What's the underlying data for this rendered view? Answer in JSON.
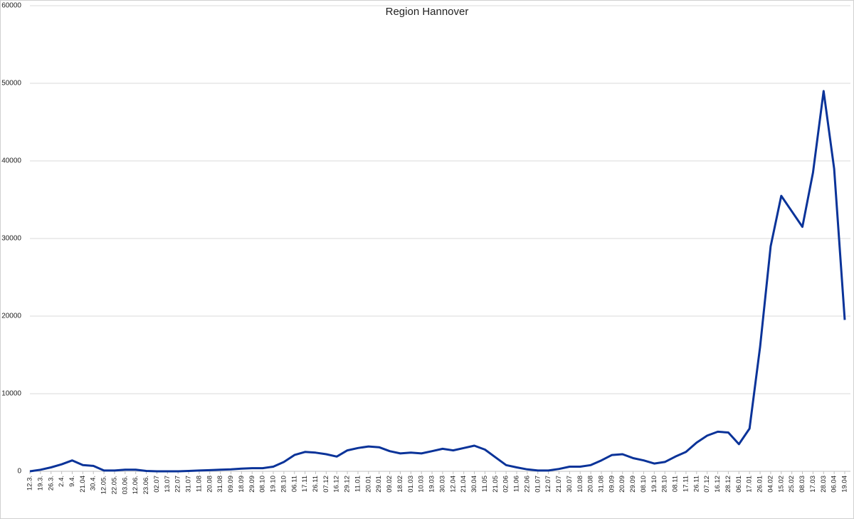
{
  "chart_data": {
    "type": "line",
    "title": "Region Hannover",
    "categories": [
      "12.3.",
      "19.3.",
      "26.3.",
      "2.4.",
      "9.4.",
      "21.04",
      "30.4.",
      "12.05.",
      "22.05.",
      "03.06.",
      "12.06.",
      "23.06.",
      "02.07",
      "13.07",
      "22.07",
      "31.07",
      "11.08",
      "20.08",
      "31.08",
      "09.09",
      "18.09",
      "29.09",
      "08.10",
      "19.10",
      "28.10",
      "06.11",
      "17.11",
      "26.11",
      "07.12",
      "16.12",
      "29.12",
      "11.01",
      "20.01",
      "29.01",
      "09.02",
      "18.02",
      "01.03",
      "10.03",
      "19.03",
      "30.03",
      "12.04",
      "21.04",
      "30.04",
      "11.05",
      "21.05",
      "02.06",
      "11.06",
      "22.06",
      "01.07",
      "12.07",
      "21.07",
      "30.07",
      "10.08",
      "20.08",
      "31.08",
      "09.09",
      "20.09",
      "29.09",
      "08.10",
      "19.10",
      "28.10",
      "08.11",
      "17.11",
      "26.11",
      "07.12",
      "16.12",
      "28.12",
      "06.01",
      "17.01",
      "26.01",
      "04.02",
      "15.02",
      "25.02",
      "08.03",
      "17.03",
      "28.03",
      "06.04",
      "19.04"
    ],
    "series": [
      {
        "name": "Region Hannover",
        "color": "#0a3399",
        "values": [
          0,
          200,
          500,
          900,
          1400,
          800,
          700,
          100,
          100,
          200,
          200,
          50,
          0,
          0,
          0,
          50,
          100,
          150,
          200,
          250,
          350,
          400,
          400,
          600,
          1200,
          2100,
          2500,
          2400,
          2200,
          1900,
          2700,
          3000,
          3200,
          3100,
          2600,
          2300,
          2400,
          2300,
          2600,
          2900,
          2700,
          3000,
          3300,
          2800,
          1800,
          800,
          500,
          250,
          100,
          100,
          300,
          600,
          600,
          800,
          1400,
          2100,
          2200,
          1700,
          1400,
          1000,
          1200,
          1900,
          2500,
          3700,
          4600,
          5100,
          5000,
          3500,
          5500,
          16000,
          29000,
          35500,
          33500,
          31500,
          38500,
          49000,
          39000,
          19500
        ]
      }
    ],
    "ylim": [
      0,
      60000
    ],
    "yticks": [
      0,
      10000,
      20000,
      30000,
      40000,
      50000,
      60000
    ],
    "grid": true
  }
}
